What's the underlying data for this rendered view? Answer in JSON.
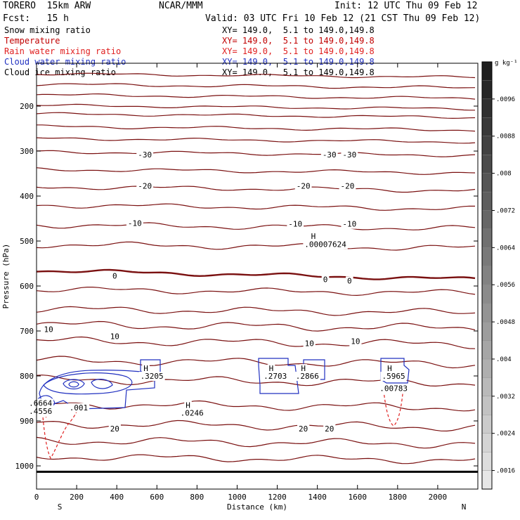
{
  "header": {
    "model": "TORERO  15km ARW",
    "center": "NCAR/MMM",
    "init": "Init: 12 UTC Thu 09 Feb 12",
    "fcst": "Fcst:   15 h",
    "valid": "Valid: 03 UTC Fri 10 Feb 12 (21 CST Thu 09 Feb 12)"
  },
  "legend": [
    {
      "label": "Snow mixing ratio",
      "xy": "XY= 149.0,  5.1 to 149.0,149.8",
      "color": "#000000"
    },
    {
      "label": "Temperature",
      "xy": "XY= 149.0,  5.1 to 149.0,149.8",
      "color": "#c00000"
    },
    {
      "label": "Rain water mixing ratio",
      "xy": "XY= 149.0,  5.1 to 149.0,149.8",
      "color": "#e02020"
    },
    {
      "label": "Cloud water mixing ratio",
      "xy": "XY= 149.0,  5.1 to 149.0,149.8",
      "color": "#2030c0"
    },
    {
      "label": "Cloud ice mixing ratio",
      "xy": "XY= 149.0,  5.1 to 149.0,149.8",
      "color": "#000000"
    }
  ],
  "chart_data": {
    "type": "contour cross-section",
    "xlabel": "Distance (km)",
    "ylabel": "Pressure (hPa)",
    "xlim": [
      0,
      2200
    ],
    "ylim": [
      1013,
      100
    ],
    "x_ticks": [
      0,
      200,
      400,
      600,
      800,
      1000,
      1200,
      1400,
      1600,
      1800,
      2000
    ],
    "y_ticks": [
      200,
      300,
      400,
      500,
      600,
      700,
      800,
      900,
      1000
    ],
    "x_end_labels": {
      "left": "S",
      "right": "N"
    },
    "colorbar": {
      "units": "g kg⁻¹",
      "tick_labels": [
        ".0096",
        ".0088",
        ".008",
        ".0072",
        ".0064",
        ".0056",
        ".0048",
        ".004",
        ".0032",
        ".0024",
        ".0016"
      ],
      "tick_values": [
        0.0096,
        0.0088,
        0.008,
        0.0072,
        0.0064,
        0.0056,
        0.0048,
        0.004,
        0.0032,
        0.0024,
        0.0016
      ],
      "range": [
        0.0012,
        0.0104
      ],
      "scale": "grayscale, dark at top"
    },
    "temperature_contours": {
      "interval_C": 5,
      "color": "#7a1010",
      "bold_level": 0,
      "labels": [
        {
          "text": "-30",
          "x": 540,
          "p": 308
        },
        {
          "text": "-30",
          "x": 1460,
          "p": 308
        },
        {
          "text": "-30",
          "x": 1560,
          "p": 308
        },
        {
          "text": "-20",
          "x": 540,
          "p": 377
        },
        {
          "text": "-20",
          "x": 1330,
          "p": 377
        },
        {
          "text": "-20",
          "x": 1550,
          "p": 377
        },
        {
          "text": "-10",
          "x": 490,
          "p": 460
        },
        {
          "text": "-10",
          "x": 1290,
          "p": 462
        },
        {
          "text": "-10",
          "x": 1560,
          "p": 462
        },
        {
          "text": "0",
          "x": 390,
          "p": 577
        },
        {
          "text": "0",
          "x": 1440,
          "p": 585
        },
        {
          "text": "0",
          "x": 1560,
          "p": 588
        },
        {
          "text": "10",
          "x": 60,
          "p": 696
        },
        {
          "text": "10",
          "x": 390,
          "p": 712
        },
        {
          "text": "10",
          "x": 1360,
          "p": 727
        },
        {
          "text": "10",
          "x": 1590,
          "p": 723
        },
        {
          "text": "20",
          "x": 390,
          "p": 917
        },
        {
          "text": "20",
          "x": 1330,
          "p": 917
        },
        {
          "text": "20",
          "x": 1460,
          "p": 917
        }
      ]
    },
    "cloud_water_labels": [
      {
        "text": "H",
        "x": 1170,
        "p": 783
      },
      {
        "text": ".2703",
        "x": 1190,
        "p": 800
      },
      {
        "text": "H",
        "x": 1760,
        "p": 783
      },
      {
        "text": ".5965",
        "x": 1780,
        "p": 800
      },
      {
        "text": ".6664",
        "x": 20,
        "p": 860
      },
      {
        "text": ".4556",
        "x": 20,
        "p": 878
      }
    ],
    "rain_water_labels": [
      {
        "text": "H",
        "x": 545,
        "p": 783
      },
      {
        "text": ".3205",
        "x": 575,
        "p": 800
      },
      {
        "text": "H",
        "x": 1330,
        "p": 783
      },
      {
        "text": ".2866",
        "x": 1350,
        "p": 800
      },
      {
        "text": "H",
        "x": 755,
        "p": 865
      },
      {
        "text": ".0246",
        "x": 775,
        "p": 882
      },
      {
        "text": ".00783",
        "x": 1780,
        "p": 827
      },
      {
        "text": ".001",
        "x": 210,
        "p": 870
      }
    ],
    "snow_labels": [
      {
        "text": "H",
        "x": 1380,
        "p": 489
      },
      {
        "text": ".00007624",
        "x": 1440,
        "p": 507
      }
    ]
  }
}
